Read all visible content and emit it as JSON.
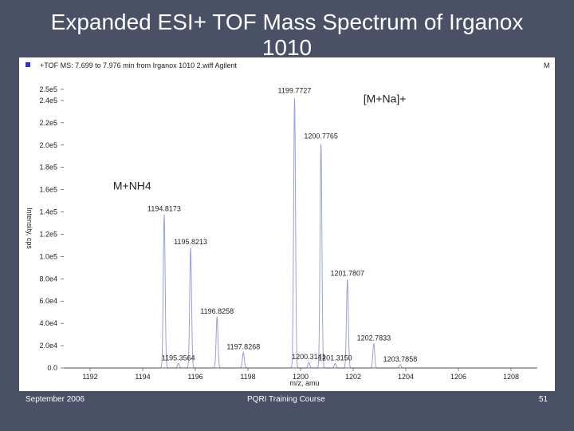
{
  "slide": {
    "title": "Expanded ESI+ TOF Mass Spectrum of Irganox 1010",
    "footer_left": "September 2006",
    "footer_center": "PQRI Training Course",
    "footer_right": "51"
  },
  "chart_data": {
    "type": "line",
    "header": "+TOF MS: 7.699 to 7.976 min from Irganox 1010 2.wiff Agilent",
    "corner_label": "M",
    "ylabel": "Intensity, cps",
    "xlabel": "m/z, amu",
    "xlim": [
      1191,
      1209
    ],
    "ylim": [
      0,
      260000
    ],
    "xticks": [
      1192,
      1194,
      1196,
      1198,
      1200,
      1202,
      1204,
      1206,
      1208
    ],
    "yticks": [
      {
        "value": 0,
        "label": "0.0"
      },
      {
        "value": 20000,
        "label": "2.0e4"
      },
      {
        "value": 40000,
        "label": "4.0e4"
      },
      {
        "value": 60000,
        "label": "6.0e4"
      },
      {
        "value": 80000,
        "label": "8.0e4"
      },
      {
        "value": 100000,
        "label": "1.0e5"
      },
      {
        "value": 120000,
        "label": "1.2e5"
      },
      {
        "value": 140000,
        "label": "1.4e5"
      },
      {
        "value": 160000,
        "label": "1.6e5"
      },
      {
        "value": 180000,
        "label": "1.8e5"
      },
      {
        "value": 200000,
        "label": "2.0e5"
      },
      {
        "value": 220000,
        "label": "2.2e5"
      },
      {
        "value": 240000,
        "label": "2.4e5"
      },
      {
        "value": 250000,
        "label": "2.5e5"
      }
    ],
    "peaks": [
      {
        "mz": 1194.8173,
        "intensity": 138000,
        "label": "1194.8173"
      },
      {
        "mz": 1195.8213,
        "intensity": 108000,
        "label": "1195.8213"
      },
      {
        "mz": 1195.3564,
        "intensity": 4000,
        "label": "1195.3564"
      },
      {
        "mz": 1196.8258,
        "intensity": 46000,
        "label": "1196.8258"
      },
      {
        "mz": 1197.8268,
        "intensity": 14000,
        "label": "1197.8268"
      },
      {
        "mz": 1199.7727,
        "intensity": 244000,
        "label": "1199.7727"
      },
      {
        "mz": 1200.3141,
        "intensity": 5000,
        "label": "1200.3141"
      },
      {
        "mz": 1200.7765,
        "intensity": 203000,
        "label": "1200.7765"
      },
      {
        "mz": 1201.315,
        "intensity": 4000,
        "label": "1201.3150"
      },
      {
        "mz": 1201.7807,
        "intensity": 80000,
        "label": "1201.7807"
      },
      {
        "mz": 1202.7833,
        "intensity": 22000,
        "label": "1202.7833"
      },
      {
        "mz": 1203.7858,
        "intensity": 3000,
        "label": "1203.7858"
      }
    ],
    "annotations": [
      {
        "text": "[M+Na]+",
        "mz": 1203.2,
        "intensity": 238000
      },
      {
        "text": "M+NH4",
        "mz": 1193.6,
        "intensity": 160000
      }
    ],
    "colors": {
      "trace": "#9aa0d8",
      "axis": "#333333",
      "marker": "#3333cc"
    }
  }
}
